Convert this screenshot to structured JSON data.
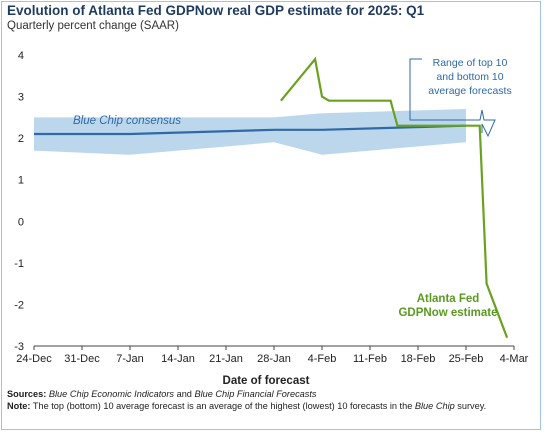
{
  "title": "Evolution of Atlanta Fed GDPNow real GDP estimate for 2025: Q1",
  "subtitle": "Quarterly percent change (SAAR)",
  "colors": {
    "band": "#bcd7ec",
    "blue_chip": "#2e6aa8",
    "gdpnow": "#6aa121",
    "annotation_text": "#2e6aa8",
    "gdpnow_label": "#5a9a20"
  },
  "annotations": {
    "band_label": [
      "Range of top 10",
      "and bottom 10",
      "average forecasts"
    ],
    "blue_chip_label": "Blue Chip consensus",
    "gdpnow_label": [
      "Atlanta Fed",
      "GDPNow estimate"
    ]
  },
  "footer": {
    "sources_label": "Sources:",
    "source1": "Blue Chip Economic Indicators",
    "and": "and",
    "source2": "Blue Chip Financial Forecasts",
    "note_label": "Note:",
    "note_text": "The top (bottom) 10 average forecast is an average of the highest (lowest) 10 forecasts in the",
    "note_italic": "Blue Chip",
    "note_end": "survey."
  },
  "chart_data": {
    "type": "line",
    "title": "Evolution of Atlanta Fed GDPNow real GDP estimate for 2025: Q1",
    "subtitle": "Quarterly percent change (SAAR)",
    "xlabel": "Date of forecast",
    "ylabel": "",
    "x_ticks": [
      "24-Dec",
      "31-Dec",
      "7-Jan",
      "14-Jan",
      "21-Jan",
      "28-Jan",
      "4-Feb",
      "11-Feb",
      "18-Feb",
      "25-Feb",
      "4-Mar"
    ],
    "y_ticks": [
      4,
      3,
      2,
      1,
      0,
      -1,
      -2,
      -3
    ],
    "ylim": [
      -3,
      4
    ],
    "grid": false,
    "series": [
      {
        "name": "Blue Chip consensus",
        "kind": "line",
        "points": [
          [
            "24-Dec",
            2.1
          ],
          [
            "7-Jan",
            2.1
          ],
          [
            "28-Jan",
            2.2
          ],
          [
            "4-Feb",
            2.2
          ],
          [
            "25-Feb",
            2.3
          ]
        ]
      },
      {
        "name": "Range of top 10 and bottom 10 average forecasts",
        "kind": "band",
        "upper": [
          [
            "24-Dec",
            2.5
          ],
          [
            "7-Jan",
            2.5
          ],
          [
            "28-Jan",
            2.5
          ],
          [
            "4-Feb",
            2.6
          ],
          [
            "25-Feb",
            2.7
          ]
        ],
        "lower": [
          [
            "24-Dec",
            1.7
          ],
          [
            "7-Jan",
            1.6
          ],
          [
            "28-Jan",
            1.9
          ],
          [
            "4-Feb",
            1.6
          ],
          [
            "25-Feb",
            1.9
          ]
        ]
      },
      {
        "name": "Atlanta Fed GDPNow estimate",
        "kind": "line",
        "points": [
          [
            "29-Jan",
            2.9
          ],
          [
            "3-Feb",
            3.9
          ],
          [
            "4-Feb",
            3.0
          ],
          [
            "5-Feb",
            2.9
          ],
          [
            "14-Feb",
            2.9
          ],
          [
            "15-Feb",
            2.3
          ],
          [
            "27-Feb",
            2.3
          ],
          [
            "28-Feb",
            -1.5
          ],
          [
            "3-Mar",
            -2.8
          ]
        ]
      }
    ]
  }
}
